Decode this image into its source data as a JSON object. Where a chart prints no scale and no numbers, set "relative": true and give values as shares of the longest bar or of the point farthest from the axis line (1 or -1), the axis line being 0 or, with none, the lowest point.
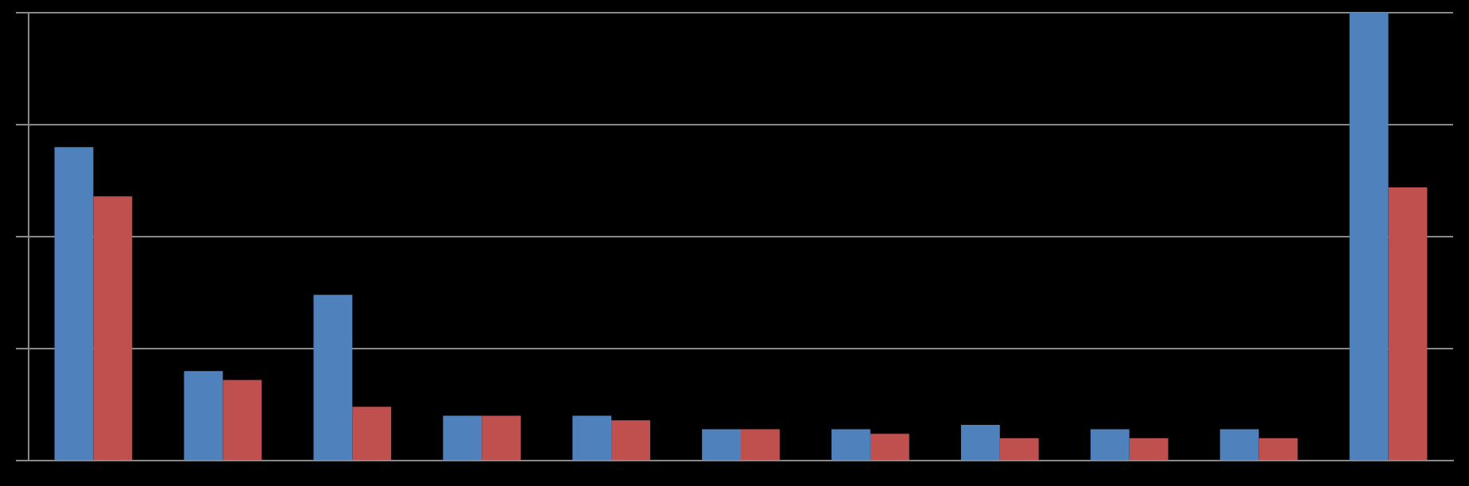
{
  "chart_data": {
    "type": "bar",
    "relative": true,
    "categories": [
      null,
      null,
      null,
      null,
      null,
      null,
      null,
      null,
      null,
      null,
      null
    ],
    "grid": "y",
    "legend": false,
    "series": [
      {
        "color": "#4f81bd",
        "values": [
          0.7,
          0.2,
          0.37,
          0.1,
          0.1,
          0.07,
          0.07,
          0.08,
          0.07,
          0.07,
          1
        ]
      },
      {
        "color": "#c0504d",
        "values": [
          0.59,
          0.18,
          0.12,
          0.1,
          0.09,
          0.07,
          0.06,
          0.05,
          0.05,
          0.05,
          0.61
        ]
      }
    ]
  }
}
